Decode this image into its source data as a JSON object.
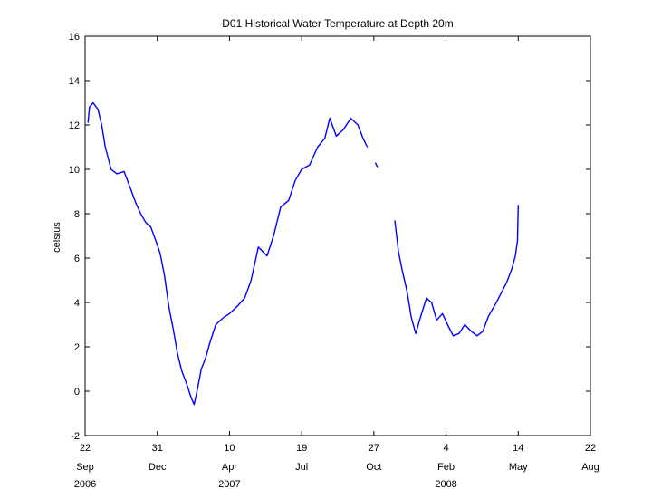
{
  "chart_data": {
    "type": "line",
    "title": "D01 Historical Water Temperature at Depth 20m",
    "xlabel": "",
    "ylabel": "celsius",
    "xlim": [
      "2006-09-22",
      "2008-08-22"
    ],
    "ylim": [
      -2,
      16
    ],
    "grid": false,
    "line_color": "#0000ff",
    "x_ticks": [
      {
        "date": "2006-09-22",
        "day": "22",
        "month": "Sep",
        "year": "2006"
      },
      {
        "date": "2006-12-31",
        "day": "31",
        "month": "Dec",
        "year": ""
      },
      {
        "date": "2007-04-10",
        "day": "10",
        "month": "Apr",
        "year": "2007"
      },
      {
        "date": "2007-07-19",
        "day": "19",
        "month": "Jul",
        "year": ""
      },
      {
        "date": "2007-10-27",
        "day": "27",
        "month": "Oct",
        "year": ""
      },
      {
        "date": "2008-02-04",
        "day": "4",
        "month": "Feb",
        "year": "2008"
      },
      {
        "date": "2008-05-14",
        "day": "14",
        "month": "May",
        "year": ""
      },
      {
        "date": "2008-08-22",
        "day": "22",
        "month": "Aug",
        "year": ""
      }
    ],
    "y_ticks": [
      -2,
      0,
      2,
      4,
      6,
      8,
      10,
      12,
      14,
      16
    ],
    "series": [
      {
        "name": "",
        "segments": [
          [
            [
              "2006-09-26",
              12.1
            ],
            [
              "2006-09-28",
              12.8
            ],
            [
              "2006-10-03",
              13.0
            ],
            [
              "2006-10-10",
              12.7
            ],
            [
              "2006-10-15",
              12.0
            ],
            [
              "2006-10-20",
              11.0
            ],
            [
              "2006-10-28",
              10.0
            ],
            [
              "2006-11-05",
              9.8
            ],
            [
              "2006-11-15",
              9.9
            ],
            [
              "2006-11-22",
              9.3
            ],
            [
              "2006-12-01",
              8.5
            ],
            [
              "2006-12-08",
              8.0
            ],
            [
              "2006-12-15",
              7.6
            ],
            [
              "2006-12-22",
              7.4
            ],
            [
              "2006-12-31",
              6.6
            ],
            [
              "2007-01-04",
              6.2
            ],
            [
              "2007-01-10",
              5.2
            ],
            [
              "2007-01-16",
              3.8
            ],
            [
              "2007-01-22",
              2.8
            ],
            [
              "2007-01-28",
              1.7
            ],
            [
              "2007-02-03",
              0.9
            ],
            [
              "2007-02-10",
              0.3
            ],
            [
              "2007-02-16",
              -0.3
            ],
            [
              "2007-02-20",
              -0.6
            ],
            [
              "2007-02-24",
              0.0
            ],
            [
              "2007-03-02",
              1.0
            ],
            [
              "2007-03-08",
              1.5
            ],
            [
              "2007-03-14",
              2.2
            ],
            [
              "2007-03-22",
              3.0
            ],
            [
              "2007-04-01",
              3.3
            ],
            [
              "2007-04-10",
              3.5
            ],
            [
              "2007-04-20",
              3.8
            ],
            [
              "2007-05-01",
              4.2
            ],
            [
              "2007-05-10",
              5.0
            ],
            [
              "2007-05-20",
              6.5
            ],
            [
              "2007-06-01",
              6.1
            ],
            [
              "2007-06-10",
              7.0
            ],
            [
              "2007-06-20",
              8.3
            ],
            [
              "2007-07-01",
              8.6
            ],
            [
              "2007-07-10",
              9.5
            ],
            [
              "2007-07-19",
              10.0
            ],
            [
              "2007-07-30",
              10.2
            ],
            [
              "2007-08-10",
              11.0
            ],
            [
              "2007-08-20",
              11.4
            ],
            [
              "2007-08-27",
              12.3
            ],
            [
              "2007-09-05",
              11.5
            ],
            [
              "2007-09-15",
              11.8
            ],
            [
              "2007-09-25",
              12.3
            ],
            [
              "2007-10-05",
              12.0
            ],
            [
              "2007-10-12",
              11.4
            ],
            [
              "2007-10-18",
              11.0
            ]
          ],
          [
            [
              "2007-10-29",
              10.3
            ],
            [
              "2007-11-01",
              10.1
            ]
          ],
          [
            [
              "2007-11-25",
              7.7
            ],
            [
              "2007-11-30",
              6.3
            ],
            [
              "2007-12-05",
              5.5
            ],
            [
              "2007-12-12",
              4.5
            ],
            [
              "2007-12-18",
              3.3
            ],
            [
              "2007-12-24",
              2.6
            ],
            [
              "2008-01-01",
              3.5
            ],
            [
              "2008-01-08",
              4.2
            ],
            [
              "2008-01-15",
              4.0
            ],
            [
              "2008-01-22",
              3.2
            ],
            [
              "2008-01-30",
              3.5
            ],
            [
              "2008-02-06",
              3.0
            ],
            [
              "2008-02-14",
              2.5
            ],
            [
              "2008-02-22",
              2.6
            ],
            [
              "2008-03-01",
              3.0
            ],
            [
              "2008-03-10",
              2.7
            ],
            [
              "2008-03-18",
              2.5
            ],
            [
              "2008-03-26",
              2.7
            ],
            [
              "2008-04-03",
              3.4
            ],
            [
              "2008-04-12",
              3.9
            ],
            [
              "2008-04-20",
              4.4
            ],
            [
              "2008-04-28",
              4.9
            ],
            [
              "2008-05-05",
              5.5
            ],
            [
              "2008-05-10",
              6.1
            ],
            [
              "2008-05-13",
              6.8
            ],
            [
              "2008-05-14",
              8.4
            ]
          ]
        ]
      }
    ]
  }
}
